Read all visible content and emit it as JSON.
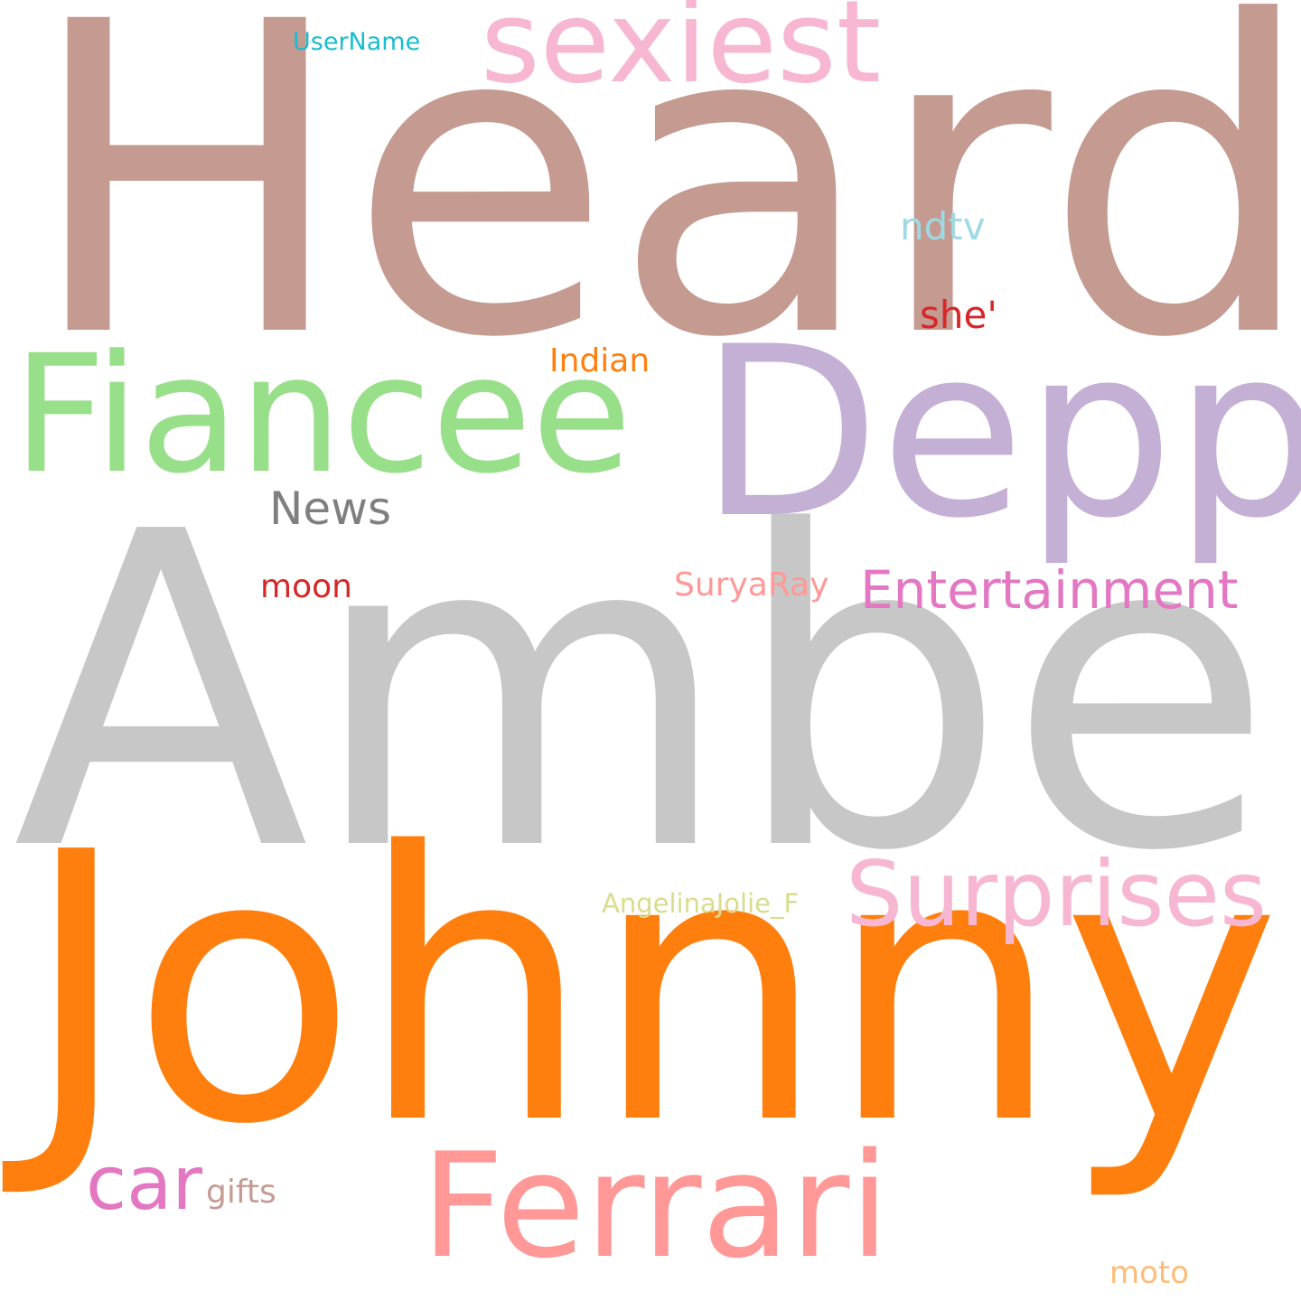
{
  "words": [
    {
      "text": "Heard",
      "color": "#c49a91"
    },
    {
      "text": "Amber",
      "color": "#c7c7c7"
    },
    {
      "text": "Johnny",
      "color": "#ff7f0e"
    },
    {
      "text": "Depp",
      "color": "#c5b0d5"
    },
    {
      "text": "Fiancee",
      "color": "#98df8a"
    },
    {
      "text": "Ferrari",
      "color": "#ff9896"
    },
    {
      "text": "sexiest",
      "color": "#f7b6d2"
    },
    {
      "text": "Surprises",
      "color": "#f7b6d2"
    },
    {
      "text": "car",
      "color": "#e377c2"
    },
    {
      "text": "Entertainment",
      "color": "#e377c2"
    },
    {
      "text": "News",
      "color": "#7f7f7f"
    },
    {
      "text": "ndtv",
      "color": "#9edae5"
    },
    {
      "text": "she'",
      "color": "#d62728"
    },
    {
      "text": "Indian",
      "color": "#ff7f0e"
    },
    {
      "text": "SuryaRay",
      "color": "#ff9896"
    },
    {
      "text": "moon",
      "color": "#d62728"
    },
    {
      "text": "gifts",
      "color": "#c49c94"
    },
    {
      "text": "moto",
      "color": "#ffbb78"
    },
    {
      "text": "AngelinaJolie_F",
      "color": "#dbdb8d"
    },
    {
      "text": "UserName",
      "color": "#17becf"
    }
  ]
}
